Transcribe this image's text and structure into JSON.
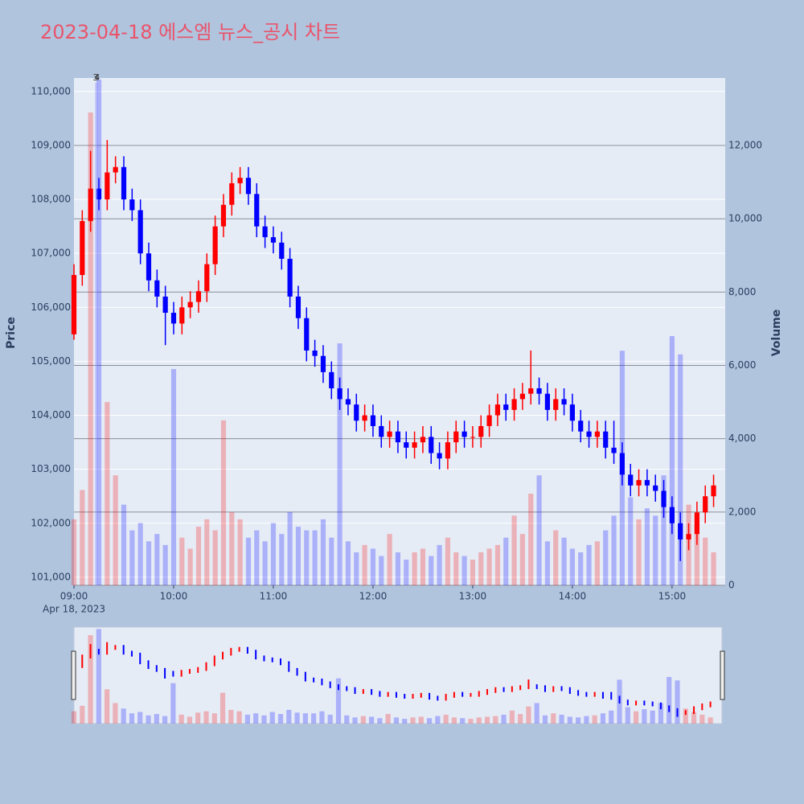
{
  "chart_data": {
    "type": "candlestick",
    "title": "2023-04-18 에스엠 뉴스_공시 차트",
    "yaxis_title": "Price",
    "y2axis_title": "Volume",
    "date_label": "Apr 18, 2023",
    "increasing_color": "#ff0000",
    "decreasing_color": "#0000ff",
    "x": [
      "09:00",
      "09:05",
      "09:10",
      "09:15",
      "09:20",
      "09:25",
      "09:30",
      "09:35",
      "09:40",
      "09:45",
      "09:50",
      "09:55",
      "10:00",
      "10:05",
      "10:10",
      "10:15",
      "10:20",
      "10:25",
      "10:30",
      "10:35",
      "10:40",
      "10:45",
      "10:50",
      "10:55",
      "11:00",
      "11:05",
      "11:10",
      "11:15",
      "11:20",
      "11:25",
      "11:30",
      "11:35",
      "11:40",
      "11:45",
      "11:50",
      "11:55",
      "12:00",
      "12:05",
      "12:10",
      "12:15",
      "12:20",
      "12:25",
      "12:30",
      "12:35",
      "12:40",
      "12:45",
      "12:50",
      "12:55",
      "13:00",
      "13:05",
      "13:10",
      "13:15",
      "13:20",
      "13:25",
      "13:30",
      "13:35",
      "13:40",
      "13:45",
      "13:50",
      "13:55",
      "14:00",
      "14:05",
      "14:10",
      "14:15",
      "14:20",
      "14:25",
      "14:30",
      "14:35",
      "14:40",
      "14:45",
      "14:50",
      "14:55",
      "15:00",
      "15:05",
      "15:10",
      "15:15",
      "15:20",
      "15:25"
    ],
    "open": [
      105500,
      106600,
      107600,
      108200,
      108000,
      108500,
      108600,
      108000,
      107800,
      107000,
      106500,
      106200,
      105900,
      105700,
      106000,
      106100,
      106300,
      106800,
      107500,
      107900,
      108300,
      108400,
      108100,
      107500,
      107300,
      107200,
      106900,
      106200,
      105800,
      105200,
      105100,
      104800,
      104500,
      104300,
      104200,
      103900,
      104000,
      103800,
      103600,
      103700,
      103500,
      103400,
      103500,
      103600,
      103300,
      103200,
      103500,
      103700,
      103600,
      103600,
      103800,
      104000,
      104200,
      104100,
      104300,
      104400,
      104500,
      104400,
      104100,
      104300,
      104200,
      103900,
      103700,
      103600,
      103700,
      103400,
      103300,
      102900,
      102700,
      102800,
      102700,
      102600,
      102300,
      102000,
      101700,
      101800,
      102200,
      102500
    ],
    "high": [
      106800,
      107800,
      108900,
      108400,
      109100,
      108800,
      108800,
      108200,
      108000,
      107200,
      106700,
      106400,
      106100,
      106200,
      106300,
      106500,
      107000,
      107700,
      108100,
      108500,
      108600,
      108600,
      108300,
      107700,
      107500,
      107400,
      107100,
      106400,
      106000,
      105400,
      105300,
      105000,
      104700,
      104500,
      104400,
      104200,
      104200,
      104000,
      103900,
      103900,
      103700,
      103700,
      103800,
      103800,
      103500,
      103700,
      103900,
      103900,
      103800,
      104000,
      104200,
      104400,
      104400,
      104500,
      104600,
      105200,
      104700,
      104600,
      104500,
      104500,
      104400,
      104100,
      103900,
      103900,
      103900,
      103900,
      103500,
      103100,
      103000,
      103000,
      102900,
      102800,
      102500,
      102200,
      102000,
      102400,
      102700,
      102900
    ],
    "low": [
      105400,
      106400,
      107400,
      107800,
      107800,
      108300,
      107800,
      107600,
      106800,
      106300,
      106000,
      105300,
      105500,
      105500,
      105800,
      105900,
      106100,
      106600,
      107300,
      107700,
      108100,
      107900,
      107300,
      107100,
      107000,
      106700,
      106000,
      105600,
      105000,
      104900,
      104600,
      104300,
      104100,
      104000,
      103700,
      103700,
      103600,
      103400,
      103400,
      103300,
      103200,
      103200,
      103300,
      103100,
      103000,
      103000,
      103300,
      103400,
      103400,
      103400,
      103600,
      103800,
      103900,
      103900,
      104100,
      104200,
      104200,
      103900,
      103900,
      104000,
      103700,
      103500,
      103400,
      103400,
      103200,
      103100,
      102700,
      102500,
      102500,
      102500,
      102400,
      102100,
      101800,
      101300,
      101500,
      101600,
      102000,
      102300
    ],
    "close": [
      106600,
      107600,
      108200,
      108000,
      108500,
      108600,
      108000,
      107800,
      107000,
      106500,
      106200,
      105900,
      105700,
      106000,
      106100,
      106300,
      106800,
      107500,
      107900,
      108300,
      108400,
      108100,
      107500,
      107300,
      107200,
      106900,
      106200,
      105800,
      105200,
      105100,
      104800,
      104500,
      104300,
      104200,
      103900,
      104000,
      103800,
      103600,
      103700,
      103500,
      103400,
      103500,
      103600,
      103300,
      103200,
      103500,
      103700,
      103600,
      103600,
      103800,
      104000,
      104200,
      104100,
      104300,
      104400,
      104500,
      104400,
      104100,
      104300,
      104200,
      103900,
      103700,
      103600,
      103700,
      103400,
      103300,
      102900,
      102700,
      102800,
      102700,
      102600,
      102300,
      102000,
      101700,
      101800,
      102200,
      102500,
      102700
    ],
    "volume": [
      1800,
      2600,
      12900,
      13800,
      5000,
      3000,
      2200,
      1500,
      1700,
      1200,
      1400,
      1100,
      5900,
      1300,
      1000,
      1600,
      1800,
      1500,
      4500,
      2000,
      1800,
      1300,
      1500,
      1200,
      1700,
      1400,
      2000,
      1600,
      1500,
      1500,
      1800,
      1300,
      6600,
      1200,
      900,
      1100,
      1000,
      800,
      1400,
      900,
      700,
      900,
      1000,
      800,
      1100,
      1300,
      900,
      800,
      700,
      900,
      1000,
      1100,
      1300,
      1900,
      1400,
      2500,
      3000,
      1200,
      1500,
      1300,
      1000,
      900,
      1100,
      1200,
      1500,
      1900,
      6400,
      2400,
      1800,
      2100,
      1900,
      3000,
      6800,
      6300,
      2200,
      1700,
      1300,
      900
    ],
    "annotations": [
      {
        "x": "09:13",
        "text": "3"
      },
      {
        "x": "09:14",
        "text": "4"
      }
    ],
    "xlim": [
      "09:00",
      "15:32"
    ],
    "xticks": [
      "09:00",
      "10:00",
      "11:00",
      "12:00",
      "13:00",
      "14:00",
      "15:00"
    ],
    "ylim": [
      100850,
      110250
    ],
    "yticks": [
      {
        "value": 101000,
        "label": "101,000"
      },
      {
        "value": 102000,
        "label": "102,000"
      },
      {
        "value": 103000,
        "label": "103,000"
      },
      {
        "value": 104000,
        "label": "104,000"
      },
      {
        "value": 105000,
        "label": "105,000"
      },
      {
        "value": 106000,
        "label": "106,000"
      },
      {
        "value": 107000,
        "label": "107,000"
      },
      {
        "value": 108000,
        "label": "108,000"
      },
      {
        "value": 109000,
        "label": "109,000"
      },
      {
        "value": 110000,
        "label": "110,000"
      }
    ],
    "y2lim": [
      0,
      13840
    ],
    "y2ticks": [
      0,
      {
        "value": 2000,
        "label": "2,000"
      },
      {
        "value": 4000,
        "label": "4,000"
      },
      {
        "value": 6000,
        "label": "6,000"
      },
      {
        "value": 8000,
        "label": "8,000"
      },
      {
        "value": 10000,
        "label": "10,000"
      },
      {
        "value": 12000,
        "label": "12,000"
      }
    ]
  }
}
